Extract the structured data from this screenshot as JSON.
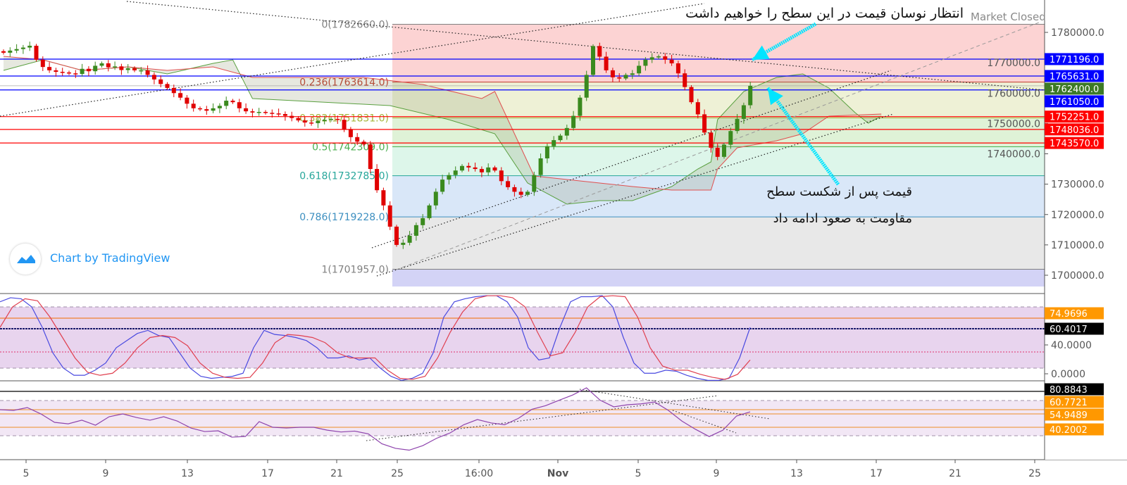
{
  "annotations": {
    "top": "انتظار نوسان قیمت در این سطح را خواهیم داشت",
    "line1": "قیمت پس از شکست سطح",
    "line2": "مقاومت به صعود ادامه داد"
  },
  "market_status": "Market Closed",
  "branding": "Chart by TradingView",
  "colors": {
    "bull": "#3a8a1e",
    "bear": "#e00000",
    "blue_level": "#0000ff",
    "red_level": "#ff0000",
    "tag_green": "#3d7a27",
    "orange": "#ff9800",
    "arrow": "#00e5ff",
    "tv_blue": "#2196f3"
  },
  "chart_data": [
    {
      "type": "candlestick",
      "pane": "price",
      "y_ticks": [
        "1780000.0",
        "1770000.0",
        "1760000.0",
        "1750000.0",
        "1740000.0",
        "1730000.0",
        "1720000.0",
        "1710000.0",
        "1700000.0"
      ],
      "ylim": [
        1697000,
        1790000
      ],
      "x_ticks": [
        "5",
        "9",
        "13",
        "17",
        "21",
        "25",
        "16:00",
        "Nov",
        "5",
        "9",
        "13",
        "17",
        "21",
        "25"
      ],
      "closes": [
        1773300,
        1774000,
        1774500,
        1775000,
        1775600,
        1771000,
        1768600,
        1767500,
        1767000,
        1766800,
        1766500,
        1766300,
        1768000,
        1767200,
        1769000,
        1769800,
        1768500,
        1768800,
        1767600,
        1768200,
        1767500,
        1767500,
        1766000,
        1764500,
        1763000,
        1761700,
        1760000,
        1758500,
        1756500,
        1755000,
        1754700,
        1754200,
        1755000,
        1755800,
        1757500,
        1757000,
        1755000,
        1754000,
        1753600,
        1753800,
        1753500,
        1753300,
        1753100,
        1752500,
        1751800,
        1751000,
        1750300,
        1750100,
        1750800,
        1751200,
        1751500,
        1751200,
        1748000,
        1745500,
        1744000,
        1743100,
        1735000,
        1728000,
        1723000,
        1716000,
        1710000,
        1710700,
        1713000,
        1716500,
        1718800,
        1723000,
        1727500,
        1731500,
        1733000,
        1734500,
        1736000,
        1735500,
        1735000,
        1733900,
        1735500,
        1734500,
        1731000,
        1729000,
        1727500,
        1726500,
        1727500,
        1733000,
        1738500,
        1742500,
        1744500,
        1746000,
        1748500,
        1752500,
        1758500,
        1766000,
        1775500,
        1772000,
        1767500,
        1765200,
        1764800,
        1766000,
        1766500,
        1769000,
        1771000,
        1771800,
        1772100,
        1771000,
        1769800,
        1766500,
        1762000,
        1757000,
        1753000,
        1747000,
        1742000,
        1739000,
        1743000,
        1747500,
        1751500,
        1756000,
        1762400
      ],
      "fibonacci": [
        {
          "level": "0",
          "price": 1782660.0,
          "label": "0(1782660.0)",
          "color": "#808080"
        },
        {
          "level": "0.236",
          "price": 1763614.0,
          "label": "0.236(1763614.0)",
          "color": "#c0392b"
        },
        {
          "level": "0.382",
          "price": 1751831.0,
          "label": "0.382(1751831.0)",
          "color": "#a5b53a"
        },
        {
          "level": "0.5",
          "price": 1742309.0,
          "label": "0.5(1742309.0)",
          "color": "#4caf50"
        },
        {
          "level": "0.618",
          "price": 1732785.0,
          "label": "0.618(1732785.0)",
          "color": "#26a69a"
        },
        {
          "level": "0.786",
          "price": 1719228.0,
          "label": "0.786(1719228.0)",
          "color": "#3d8fc0"
        },
        {
          "level": "1",
          "price": 1701957.0,
          "label": "1(1701957.0)",
          "color": "#808080"
        }
      ],
      "levels": [
        {
          "price": 1771196.0,
          "label": "1771196.0",
          "color": "#0000ff"
        },
        {
          "price": 1765631.0,
          "label": "1765631.0",
          "color": "#0000ff"
        },
        {
          "price": 1762400.0,
          "label": "1762400.0",
          "color": "#3d7a27"
        },
        {
          "price": 1761050.0,
          "label": "1761050.0",
          "color": "#0000ff"
        },
        {
          "price": 1752251.0,
          "label": "1752251.0",
          "color": "#ff0000"
        },
        {
          "price": 1748036.0,
          "label": "1748036.0",
          "color": "#ff0000"
        },
        {
          "price": 1743570.0,
          "label": "1743570.0",
          "color": "#ff0000"
        }
      ],
      "cloud_span_a": [
        [
          0,
          1767478
        ],
        [
          6,
          1770957
        ],
        [
          12,
          1767478
        ],
        [
          19,
          1768638
        ],
        [
          25,
          1766319
        ],
        [
          32,
          1769797
        ],
        [
          35,
          1770957
        ],
        [
          38,
          1758203
        ],
        [
          59,
          1755884
        ],
        [
          68,
          1751247
        ],
        [
          75,
          1746609
        ],
        [
          80,
          1730378
        ],
        [
          86,
          1723421
        ],
        [
          91,
          1724581
        ],
        [
          96,
          1724581
        ],
        [
          102,
          1729218
        ],
        [
          106,
          1735015
        ],
        [
          108,
          1737334
        ],
        [
          109,
          1751247
        ],
        [
          113,
          1760522
        ],
        [
          118,
          1765160
        ],
        [
          122,
          1766319
        ],
        [
          126,
          1761681
        ],
        [
          130,
          1753566
        ],
        [
          132,
          1750088
        ],
        [
          134,
          1752407
        ]
      ],
      "cloud_span_b": [
        [
          0,
          1772116
        ],
        [
          6,
          1770957
        ],
        [
          12,
          1767478
        ],
        [
          19,
          1768638
        ],
        [
          25,
          1767478
        ],
        [
          32,
          1768638
        ],
        [
          38,
          1765160
        ],
        [
          45,
          1765160
        ],
        [
          55,
          1765160
        ],
        [
          64,
          1762841
        ],
        [
          73,
          1758203
        ],
        [
          75,
          1760522
        ],
        [
          77,
          1751247
        ],
        [
          81,
          1732696
        ],
        [
          86,
          1731537
        ],
        [
          91,
          1730378
        ],
        [
          96,
          1729218
        ],
        [
          102,
          1728059
        ],
        [
          108,
          1728059
        ],
        [
          109,
          1735015
        ],
        [
          112,
          1741971
        ],
        [
          118,
          1744290
        ],
        [
          122,
          1746609
        ],
        [
          126,
          1752407
        ],
        [
          134,
          1753102
        ]
      ]
    },
    {
      "type": "line",
      "pane": "stochastic",
      "y_ticks": [
        "40.0000",
        "0.0000"
      ],
      "tags": [
        {
          "label": "74.9696",
          "color": "#ff9800"
        },
        {
          "label": "60.4017",
          "color": "#000000"
        }
      ],
      "series": [
        {
          "color": "#4a4ae0",
          "values": [
            85,
            89,
            88,
            80,
            60,
            35,
            20,
            13,
            13,
            18,
            25,
            40,
            47,
            54,
            57,
            52,
            50,
            35,
            20,
            12,
            10,
            11,
            12,
            15,
            40,
            57,
            53,
            52,
            50,
            47,
            40,
            30,
            30,
            32,
            28,
            30,
            20,
            12,
            8,
            10,
            15,
            35,
            70,
            85,
            88,
            90,
            91,
            91,
            85,
            70,
            40,
            28,
            30,
            60,
            85,
            90,
            90,
            91,
            80,
            50,
            25,
            15,
            15,
            18,
            17,
            13,
            10,
            8,
            8,
            10,
            30,
            60
          ]
        },
        {
          "color": "#e04050",
          "values": [
            60,
            80,
            88,
            86,
            70,
            50,
            30,
            16,
            13,
            15,
            25,
            40,
            50,
            52,
            50,
            42,
            25,
            15,
            11,
            10,
            11,
            25,
            45,
            53,
            52,
            50,
            45,
            35,
            30,
            30,
            30,
            18,
            10,
            9,
            12,
            30,
            55,
            75,
            88,
            91,
            91,
            89,
            80,
            55,
            32,
            35,
            55,
            80,
            90,
            91,
            90,
            70,
            40,
            22,
            18,
            18,
            14,
            11,
            9,
            14,
            28
          ]
        }
      ]
    },
    {
      "type": "line",
      "pane": "rsi",
      "tags": [
        {
          "label": "80.8843",
          "color": "#000000"
        },
        {
          "label": "60.7721",
          "color": "#ff9800"
        },
        {
          "label": "54.9489",
          "color": "#ff9800"
        },
        {
          "label": "40.2002",
          "color": "#ff9800"
        }
      ],
      "series": [
        {
          "color": "#8e44ad",
          "values": [
            59.6,
            58.8,
            61.9,
            54.9,
            45.6,
            44,
            48,
            42.5,
            51.8,
            54.9,
            51,
            48,
            51.8,
            47,
            39.4,
            35.5,
            36.3,
            29.3,
            30.1,
            46.4,
            40.2,
            39.4,
            40.2,
            40.2,
            37,
            35,
            36,
            33,
            22,
            17,
            15,
            20,
            28,
            34,
            43,
            48.7,
            45,
            43,
            50,
            60,
            64,
            70,
            75.8,
            83.6,
            70,
            62.7,
            65,
            66,
            68,
            58.8,
            47,
            37.9,
            30,
            37,
            52.6,
            57.2
          ]
        }
      ]
    }
  ]
}
